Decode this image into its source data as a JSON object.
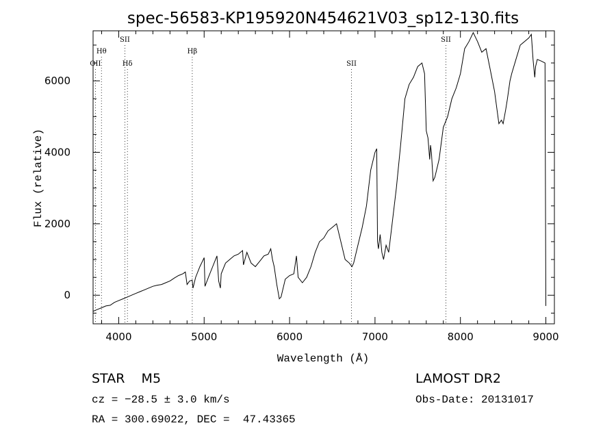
{
  "chart_data": {
    "type": "line",
    "title": "spec-56583-KP195920N454621V03_sp12-130.fits",
    "xlabel": "Wavelength (Å)",
    "ylabel": "Flux (relative)",
    "xlim": [
      3700,
      9100
    ],
    "ylim": [
      -800,
      7400
    ],
    "x_ticks": [
      4000,
      5000,
      6000,
      7000,
      8000,
      9000
    ],
    "y_ticks": [
      0,
      2000,
      4000,
      6000
    ],
    "spectral_lines": [
      {
        "label": "OII",
        "wavelength": 3727
      },
      {
        "label": "Hθ",
        "wavelength": 3798
      },
      {
        "label": "SII",
        "wavelength": 4072
      },
      {
        "label": "Hδ",
        "wavelength": 4102
      },
      {
        "label": "Hβ",
        "wavelength": 4861
      },
      {
        "label": "SII",
        "wavelength": 6725
      },
      {
        "label": "SII",
        "wavelength": 7830
      }
    ],
    "series": [
      {
        "name": "flux",
        "x": [
          3700,
          3750,
          3800,
          3850,
          3900,
          3950,
          4000,
          4050,
          4100,
          4150,
          4200,
          4250,
          4300,
          4350,
          4400,
          4450,
          4500,
          4550,
          4600,
          4650,
          4700,
          4750,
          4780,
          4800,
          4830,
          4860,
          4870,
          4900,
          4950,
          5000,
          5010,
          5050,
          5100,
          5150,
          5170,
          5190,
          5200,
          5250,
          5300,
          5350,
          5400,
          5450,
          5460,
          5500,
          5550,
          5600,
          5650,
          5700,
          5750,
          5780,
          5800,
          5820,
          5850,
          5880,
          5900,
          5950,
          6000,
          6050,
          6080,
          6100,
          6150,
          6200,
          6250,
          6300,
          6350,
          6400,
          6450,
          6500,
          6550,
          6600,
          6650,
          6700,
          6730,
          6750,
          6800,
          6850,
          6900,
          6950,
          7000,
          7020,
          7030,
          7040,
          7060,
          7080,
          7100,
          7130,
          7160,
          7200,
          7250,
          7300,
          7350,
          7400,
          7450,
          7500,
          7550,
          7580,
          7600,
          7620,
          7640,
          7650,
          7660,
          7680,
          7700,
          7720,
          7750,
          7800,
          7850,
          7900,
          7950,
          8000,
          8050,
          8100,
          8150,
          8200,
          8250,
          8300,
          8350,
          8400,
          8450,
          8480,
          8500,
          8530,
          8550,
          8580,
          8600,
          8650,
          8700,
          8750,
          8800,
          8830,
          8850,
          8870,
          8880,
          8900,
          8950,
          8990,
          9000
        ],
        "y": [
          -450,
          -400,
          -350,
          -300,
          -280,
          -200,
          -150,
          -100,
          -50,
          0,
          50,
          100,
          150,
          200,
          250,
          280,
          300,
          350,
          400,
          480,
          550,
          600,
          650,
          300,
          400,
          420,
          200,
          500,
          800,
          1050,
          250,
          500,
          800,
          1100,
          400,
          200,
          600,
          900,
          1000,
          1100,
          1150,
          1250,
          850,
          1200,
          900,
          800,
          950,
          1100,
          1150,
          1300,
          1000,
          800,
          300,
          -100,
          -50,
          450,
          550,
          600,
          1100,
          500,
          350,
          500,
          800,
          1200,
          1500,
          1600,
          1800,
          1900,
          2000,
          1500,
          1000,
          900,
          800,
          900,
          1400,
          1900,
          2500,
          3500,
          4000,
          4100,
          1500,
          1300,
          1700,
          1200,
          1000,
          1400,
          1200,
          2000,
          3000,
          4200,
          5500,
          5900,
          6100,
          6400,
          6500,
          6200,
          4600,
          4400,
          3800,
          4200,
          4000,
          3200,
          3300,
          3500,
          3800,
          4700,
          5000,
          5500,
          5800,
          6200,
          6900,
          7100,
          7350,
          7100,
          6800,
          6900,
          6300,
          5700,
          4800,
          4900,
          4800,
          5200,
          5500,
          6000,
          6200,
          6600,
          7000,
          7100,
          7200,
          7300,
          6600,
          6100,
          6400,
          6600,
          6550,
          6500,
          -300
        ]
      }
    ]
  },
  "info": {
    "class_line": "STAR    M5",
    "survey": "LAMOST DR2",
    "cz": "cz = −28.5 ± 3.0 km/s",
    "obs_date": "Obs-Date: 20131017",
    "radec": "RA = 300.69022, DEC =  47.43365"
  }
}
